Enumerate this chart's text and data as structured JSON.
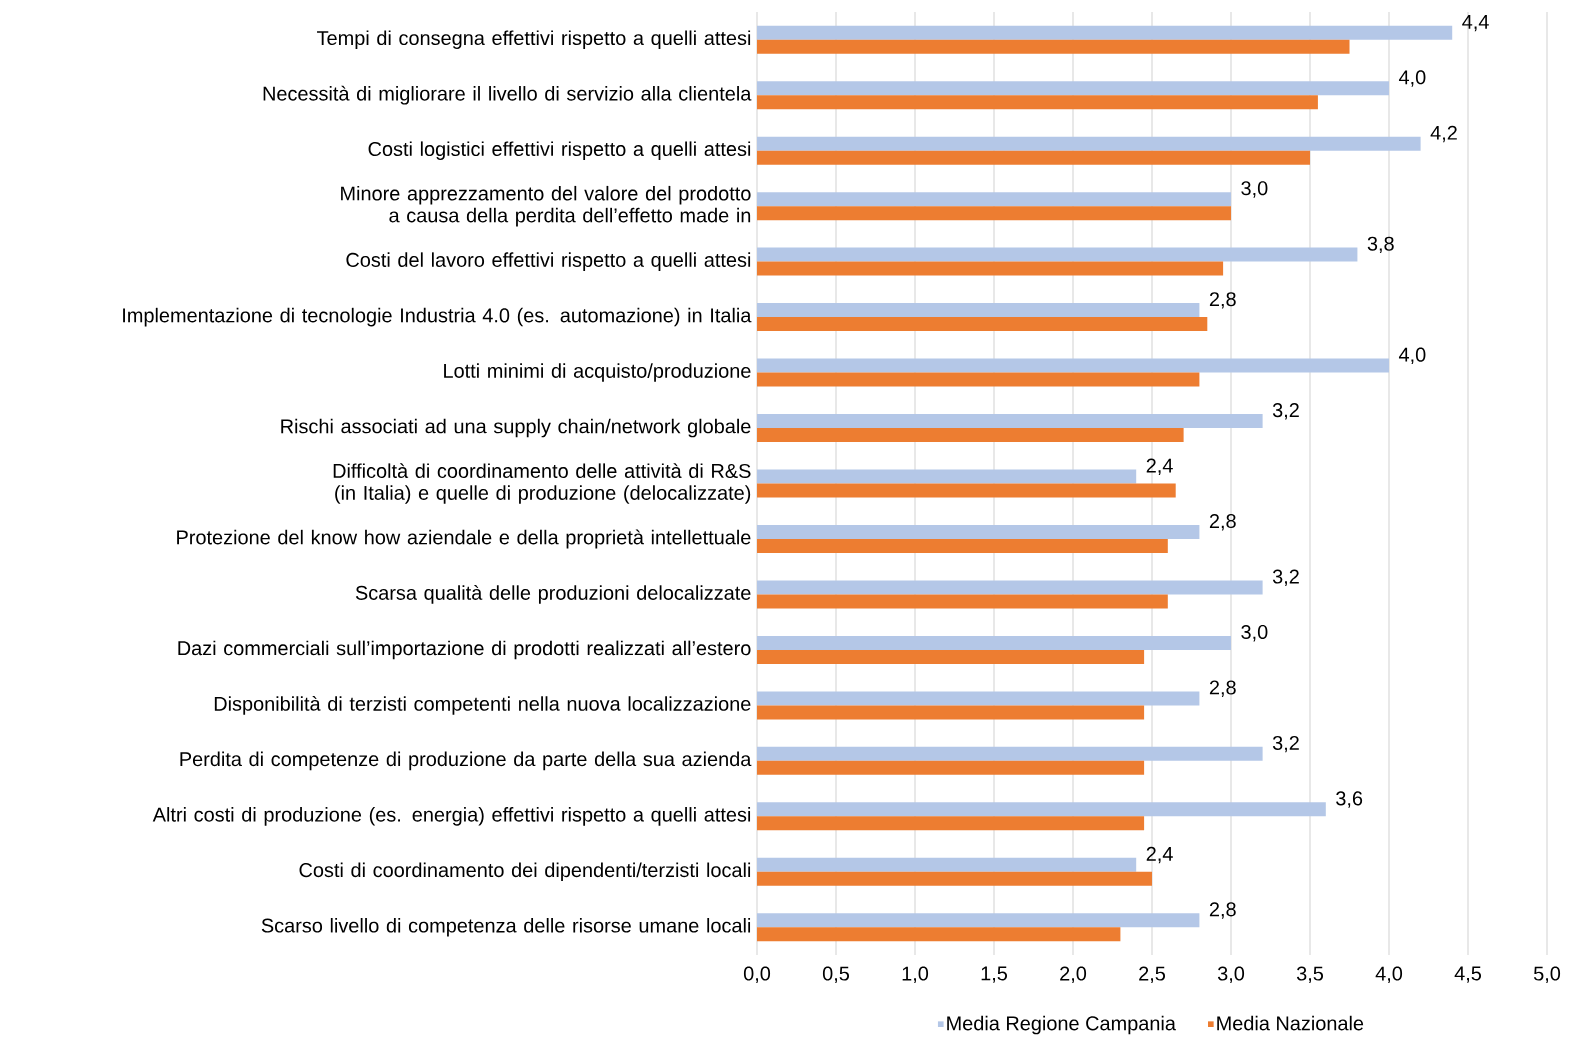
{
  "chart_data": {
    "type": "bar",
    "orientation": "horizontal",
    "categories": [
      "Tempi di consegna effettivi rispetto a quelli attesi",
      "Necessità di migliorare il livello di servizio alla clientela",
      "Costi logistici effettivi rispetto a quelli attesi",
      "Minore apprezzamento del valore del prodotto a causa della perdita dell’effetto made in",
      "Costi del lavoro effettivi rispetto a quelli attesi",
      "Implementazione di tecnologie Industria 4.0 (es. automazione) in Italia",
      "Lotti minimi di acquisto/produzione",
      "Rischi associati ad una supply chain/network globale",
      "Difficoltà di coordinamento delle attività di R&S (in Italia) e quelle di produzione (delocalizzate)",
      "Protezione del know how aziendale e della proprietà intellettuale",
      "Scarsa qualità delle produzioni delocalizzate",
      "Dazi commerciali sull’importazione di prodotti realizzati all’estero",
      "Disponibilità di terzisti competenti nella nuova localizzazione",
      "Perdita di competenze di produzione da parte della sua azienda",
      "Altri costi di produzione (es. energia) effettivi rispetto a quelli attesi",
      "Costi di coordinamento dei dipendenti/terzisti locali",
      "Scarso livello di competenza delle risorse umane locali"
    ],
    "series": [
      {
        "name": "Media Regione Campania",
        "color": "#b4c7e7",
        "values": [
          4.4,
          4.0,
          4.2,
          3.0,
          3.8,
          2.8,
          4.0,
          3.2,
          2.4,
          2.8,
          3.2,
          3.0,
          2.8,
          3.2,
          3.6,
          2.4,
          2.8
        ],
        "value_labels": [
          "4,4",
          "4,0",
          "4,2",
          "3,0",
          "3,8",
          "2,8",
          "4,0",
          "3,2",
          "2,4",
          "2,8",
          "3,2",
          "3,0",
          "2,8",
          "3,2",
          "3,6",
          "2,4",
          "2,8"
        ]
      },
      {
        "name": "Media Nazionale",
        "color": "#ed7d31",
        "values": [
          3.75,
          3.55,
          3.5,
          3.0,
          2.95,
          2.85,
          2.8,
          2.7,
          2.65,
          2.6,
          2.6,
          2.45,
          2.45,
          2.45,
          2.45,
          2.5,
          2.3
        ]
      }
    ],
    "xlim": [
      0,
      5
    ],
    "xticks": [
      {
        "value": 0,
        "label": "0,0"
      },
      {
        "value": 0.5,
        "label": "0,5"
      },
      {
        "value": 1,
        "label": "1,0"
      },
      {
        "value": 1.5,
        "label": "1,5"
      },
      {
        "value": 2,
        "label": "2,0"
      },
      {
        "value": 2.5,
        "label": "2,5"
      },
      {
        "value": 3,
        "label": "3,0"
      },
      {
        "value": 3.5,
        "label": "3,5"
      },
      {
        "value": 4,
        "label": "4,0"
      },
      {
        "value": 4.5,
        "label": "4,5"
      },
      {
        "value": 5,
        "label": "5,0"
      }
    ],
    "grid": "x",
    "legend": "bottom"
  }
}
